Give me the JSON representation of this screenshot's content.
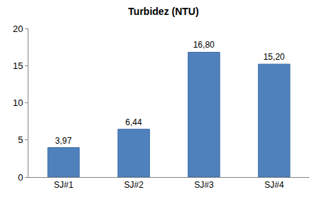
{
  "chart_data": {
    "type": "bar",
    "title": "Turbidez (NTU)",
    "categories": [
      "SJ#1",
      "SJ#2",
      "SJ#3",
      "SJ#4"
    ],
    "values": [
      3.97,
      6.44,
      16.8,
      15.2
    ],
    "value_labels": [
      "3,97",
      "6,44",
      "16,80",
      "15,20"
    ],
    "color": "#4f81bd",
    "ylim": [
      0,
      20
    ],
    "yticks": [
      0,
      5,
      10,
      15,
      20
    ],
    "grid": false,
    "data_labels": true
  }
}
